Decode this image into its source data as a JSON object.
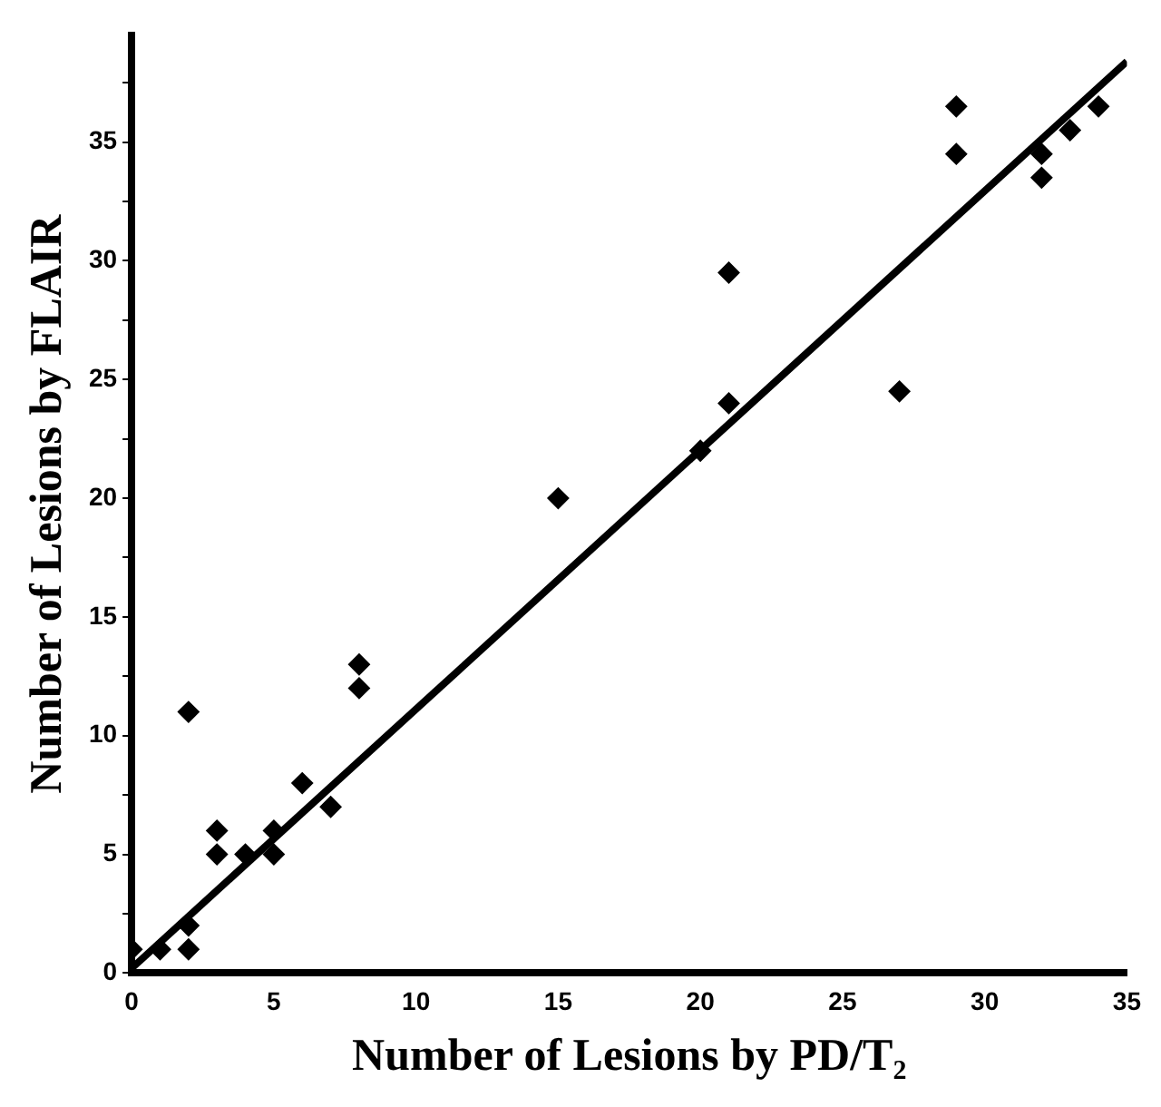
{
  "chart_data": {
    "type": "scatter",
    "xlabel": "Number of Lesions by PD/T₂",
    "ylabel": "Number of Lesions by FLAIR",
    "xlim": [
      0,
      35
    ],
    "ylim": [
      0,
      39.5
    ],
    "xticks": [
      0,
      5,
      10,
      15,
      20,
      25,
      30,
      35
    ],
    "yticks": [
      0,
      {
        "value": 2.5,
        "label": null
      },
      5,
      {
        "value": 7.5,
        "label": null
      },
      10,
      {
        "value": 12.5,
        "label": null
      },
      15,
      {
        "value": 17.5,
        "label": null
      },
      20,
      {
        "value": 22.5,
        "label": null
      },
      25,
      {
        "value": 27.5,
        "label": null
      },
      30,
      {
        "value": 32.5,
        "label": null
      },
      35,
      {
        "value": 37.5,
        "label": null
      }
    ],
    "grid": false,
    "legend": false,
    "series": [
      {
        "type": "scatter",
        "color": "#000000",
        "marker": "diamond",
        "x": [
          0,
          1,
          2,
          2,
          2,
          3,
          3,
          4,
          5,
          5,
          6,
          7,
          8,
          8,
          15,
          20,
          21,
          21,
          27,
          29,
          29,
          32,
          32,
          33,
          34
        ],
        "values": [
          1,
          1,
          2,
          1,
          11,
          6,
          5,
          5,
          6,
          5,
          8,
          7,
          13,
          12,
          20,
          22,
          24,
          29.5,
          24.5,
          36.5,
          34.5,
          34.5,
          33.5,
          35.5,
          36.5
        ]
      },
      {
        "type": "line",
        "color": "#000000",
        "marker": "none",
        "line_style": "solid",
        "x": [
          0,
          35
        ],
        "values": [
          0.2,
          38.4
        ]
      }
    ]
  }
}
